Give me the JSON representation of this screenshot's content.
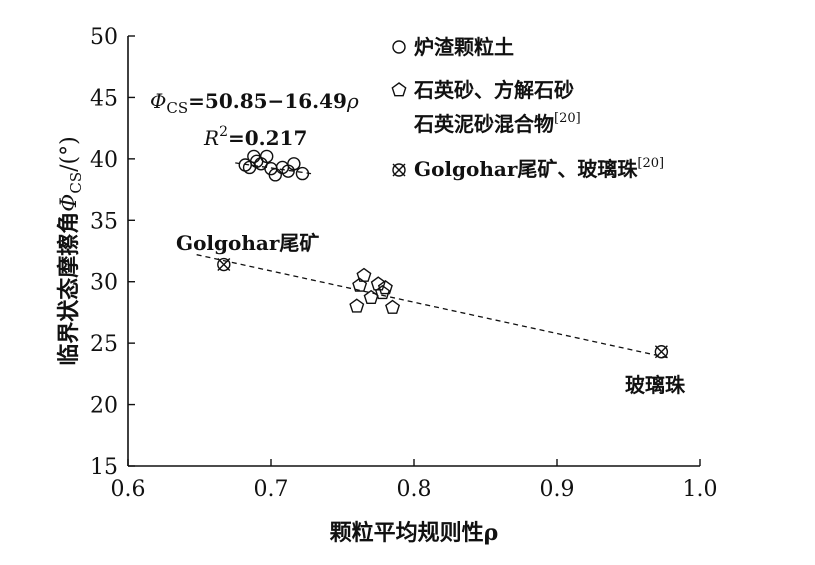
{
  "chart_data": {
    "type": "scatter",
    "xlabel": "颗粒平均规则性ρ",
    "ylabel_main": "临界状态摩擦角",
    "ylabel_symbol": "Φ",
    "ylabel_sub": "CS",
    "ylabel_unit": "/(°)",
    "xlim": [
      0.6,
      1.0
    ],
    "ylim": [
      15,
      50
    ],
    "xticks": [
      "0.6",
      "0.7",
      "0.8",
      "0.9",
      "1.0"
    ],
    "yticks": [
      "15",
      "20",
      "25",
      "30",
      "35",
      "40",
      "45",
      "50"
    ],
    "grid": false,
    "legend_position": "top-right",
    "series": [
      {
        "name": "炉渣颗粒土",
        "marker": "circle",
        "x": [
          0.682,
          0.685,
          0.688,
          0.69,
          0.693,
          0.697,
          0.7,
          0.703,
          0.708,
          0.712,
          0.716,
          0.722
        ],
        "y": [
          39.5,
          39.3,
          40.2,
          39.8,
          39.6,
          40.2,
          39.2,
          38.7,
          39.3,
          39.0,
          39.6,
          38.8
        ]
      },
      {
        "name_line1": "石英砂、方解石砂",
        "name_line2": "石英泥砂混合物",
        "name_ref": "[20]",
        "marker": "pentagon",
        "x": [
          0.76,
          0.762,
          0.765,
          0.77,
          0.775,
          0.778,
          0.78,
          0.785
        ],
        "y": [
          28.0,
          29.7,
          30.5,
          28.7,
          29.8,
          29.1,
          29.5,
          27.9
        ]
      },
      {
        "name": "Golgohar尾矿、玻璃珠",
        "name_ref": "[20]",
        "marker": "circle-x",
        "x": [
          0.667,
          0.973
        ],
        "y": [
          31.4,
          24.3
        ]
      }
    ],
    "fits": [
      {
        "x": [
          0.675,
          0.728
        ],
        "y": [
          39.67,
          38.8
        ]
      },
      {
        "x": [
          0.648,
          0.978
        ],
        "y": [
          32.2,
          23.8
        ]
      }
    ],
    "annotations": {
      "eq_symbol": "Φ",
      "eq_sub": "CS",
      "eq_body": "=50.85−16.49",
      "eq_rho": "ρ",
      "r2_symbol": "R",
      "r2_sup": "2",
      "r2_value": "=0.217",
      "golgohar_label": "Golgohar尾矿",
      "glass_label": "玻璃珠"
    }
  }
}
